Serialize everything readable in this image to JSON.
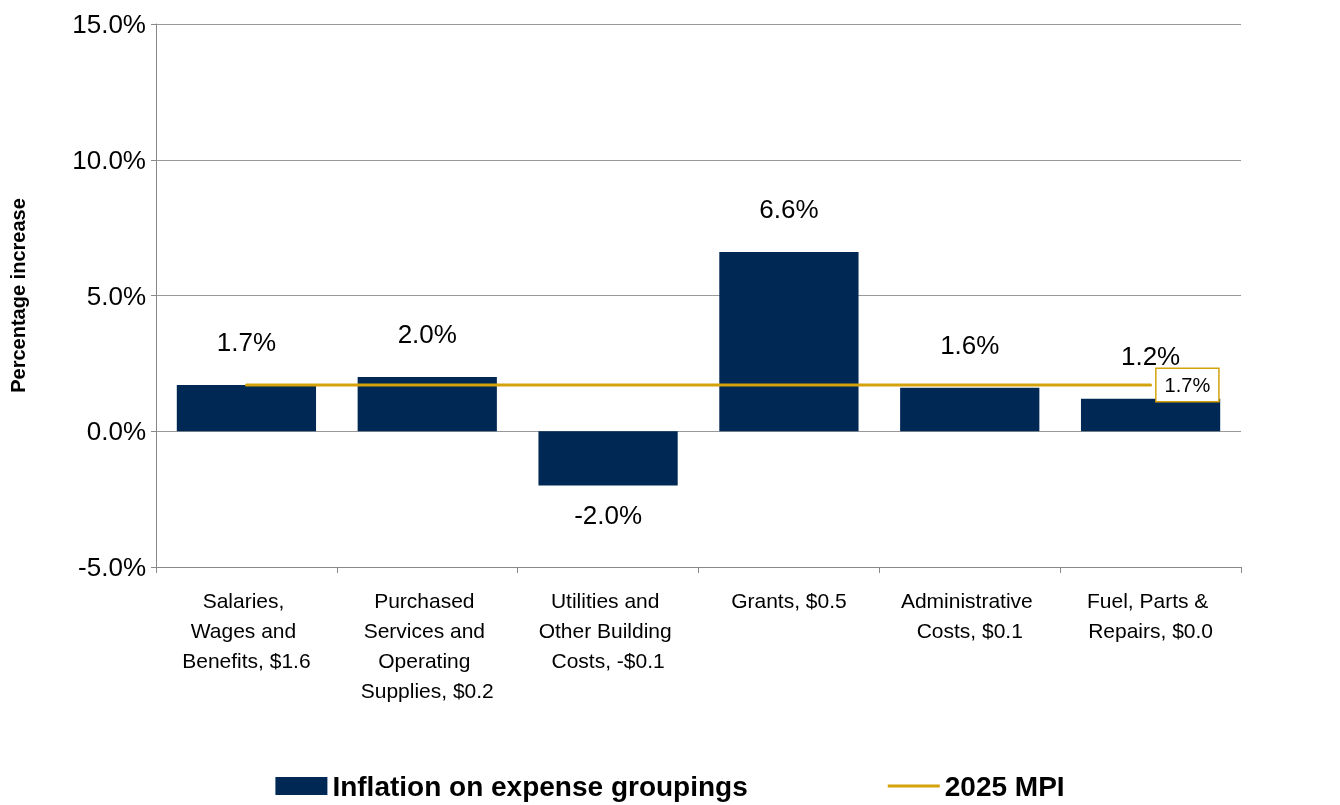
{
  "chart_data": {
    "type": "bar",
    "ylabel": "Percentage increase",
    "categories": [
      "Salaries, Wages and Benefits, $1.6",
      "Purchased Services and Operating Supplies, $0.2",
      "Utilities and Other Building Costs, -$0.1",
      "Grants, $0.5",
      "Administrative Costs, $0.1",
      "Fuel, Parts & Repairs, $0.0"
    ],
    "series": [
      {
        "name": "Inflation on expense groupings",
        "color": "#002855",
        "values": [
          1.7,
          2.0,
          -2.0,
          6.6,
          1.6,
          1.2
        ],
        "value_labels": [
          "1.7%",
          "2.0%",
          "-2.0%",
          "6.6%",
          "1.6%",
          "1.2%"
        ]
      },
      {
        "name": "2025 MPI",
        "type": "line",
        "color": "#d4a20a",
        "values": [
          1.7,
          1.7,
          1.7,
          1.7,
          1.7,
          1.7
        ],
        "value_labels": [
          null,
          null,
          null,
          null,
          null,
          "1.7%"
        ]
      }
    ],
    "ylim": [
      -5,
      15
    ],
    "yticks": [
      {
        "value": -5,
        "label": "-5.0%"
      },
      {
        "value": 0,
        "label": "0.0%"
      },
      {
        "value": 5,
        "label": "5.0%"
      },
      {
        "value": 10,
        "label": "10.0%"
      },
      {
        "value": 15,
        "label": "15.0%"
      }
    ],
    "grid": "y",
    "legend": "bottom"
  }
}
